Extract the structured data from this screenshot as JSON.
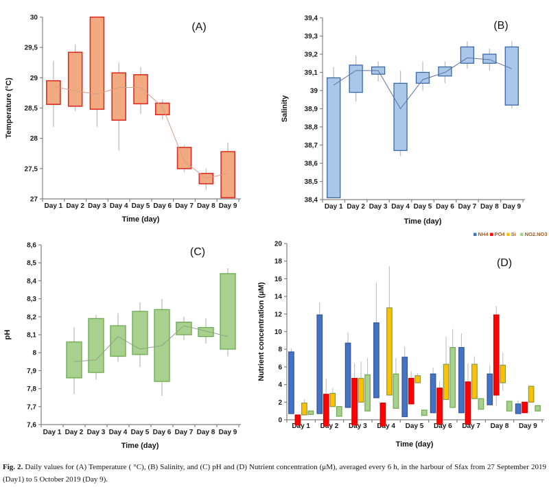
{
  "caption": {
    "label": "Fig. 2.",
    "text": "Daily values for (A) Temperature ( °C), (B) Salinity, and (C) pH and (D) Nutrient concentration (μM), averaged every 6 h, in the harbour of Sfax from 27 September 2019 (Day1) to 5 October 2019 (Day 9)."
  },
  "chart_data": [
    {
      "id": "A",
      "type": "box",
      "panel_label": "(A)",
      "ylabel": "Temperature (°C)",
      "xlabel": "Time (day)",
      "ylim": [
        27,
        30
      ],
      "ytick": 0.5,
      "decimal_comma": true,
      "categories": [
        "Day 1",
        "Day 2",
        "Day 3",
        "Day 4",
        "Day 5",
        "Day 6",
        "Day 7",
        "Day 8",
        "Day 9"
      ],
      "colors": {
        "fill": "#F2AB80",
        "stroke": "#DD2C23",
        "mean_line": "#D39E87",
        "whisker": "#BDBDBD",
        "axis": "#808080"
      },
      "boxes": [
        {
          "box": [
            28.56,
            28.95
          ],
          "whiskers": [
            28.19,
            29.28
          ],
          "mean": 28.86
        },
        {
          "box": [
            28.53,
            29.42
          ],
          "whiskers": [
            28.45,
            29.55
          ],
          "mean": 28.78
        },
        {
          "box": [
            28.48,
            30.0
          ],
          "whiskers": [
            28.19,
            30.0
          ],
          "mean": 28.73
        },
        {
          "box": [
            28.3,
            29.08
          ],
          "whiskers": [
            27.8,
            29.25
          ],
          "mean": 28.84
        },
        {
          "box": [
            28.57,
            29.05
          ],
          "whiskers": [
            28.4,
            29.18
          ],
          "mean": 28.84
        },
        {
          "box": [
            28.39,
            28.58
          ],
          "whiskers": [
            28.31,
            28.64
          ],
          "mean": 28.52
        },
        {
          "box": [
            27.5,
            27.85
          ],
          "whiskers": [
            27.44,
            27.89
          ],
          "mean": 27.62
        },
        {
          "box": [
            27.25,
            27.42
          ],
          "whiskers": [
            27.15,
            27.5
          ],
          "mean": 27.34
        },
        {
          "box": [
            27.02,
            27.78
          ],
          "whiskers": [
            27.02,
            27.93
          ],
          "mean": 27.42
        }
      ]
    },
    {
      "id": "B",
      "type": "box",
      "panel_label": "(B)",
      "ylabel": "Salinity",
      "xlabel": "Time (day)",
      "ylim": [
        38.4,
        39.4
      ],
      "ytick": 0.1,
      "decimal_comma": true,
      "categories": [
        "Day 1",
        "Day 2",
        "Day 3",
        "Day 4",
        "Day 5",
        "Day 6",
        "Day 7",
        "Day 8",
        "Day 9"
      ],
      "colors": {
        "fill": "#A9C7E9",
        "stroke": "#3A66A8",
        "mean_line": "#5B6FA8",
        "whisker": "#BDBDBD",
        "axis": "#808080"
      },
      "boxes": [
        {
          "box": [
            38.41,
            39.07
          ],
          "whiskers": [
            38.41,
            39.13
          ],
          "mean": 39.03
        },
        {
          "box": [
            38.99,
            39.14
          ],
          "whiskers": [
            38.94,
            39.19
          ],
          "mean": 39.11
        },
        {
          "box": [
            39.09,
            39.13
          ],
          "whiskers": [
            39.05,
            39.16
          ],
          "mean": 39.11
        },
        {
          "box": [
            38.67,
            39.04
          ],
          "whiskers": [
            38.64,
            39.11
          ],
          "mean": 38.9
        },
        {
          "box": [
            39.04,
            39.1
          ],
          "whiskers": [
            39.0,
            39.16
          ],
          "mean": 39.06
        },
        {
          "box": [
            39.08,
            39.13
          ],
          "whiskers": [
            39.04,
            39.16
          ],
          "mean": 39.1
        },
        {
          "box": [
            39.15,
            39.24
          ],
          "whiskers": [
            39.12,
            39.27
          ],
          "mean": 39.18
        },
        {
          "box": [
            39.15,
            39.2
          ],
          "whiskers": [
            39.11,
            39.23
          ],
          "mean": 39.17
        },
        {
          "box": [
            38.92,
            39.24
          ],
          "whiskers": [
            38.9,
            39.27
          ],
          "mean": 39.12
        }
      ]
    },
    {
      "id": "C",
      "type": "box",
      "panel_label": "(C)",
      "ylabel": "pH",
      "xlabel": "Time (day)",
      "ylim": [
        7.6,
        8.6
      ],
      "ytick": 0.1,
      "decimal_comma": true,
      "categories": [
        "Day 1",
        "Day 2",
        "Day 3",
        "Day 4",
        "Day 5",
        "Day 6",
        "Day 7",
        "Day 8",
        "Day 9"
      ],
      "colors": {
        "fill": "#A9D18E",
        "stroke": "#6AA84F",
        "mean_line": "#8E9F85",
        "whisker": "#BDBDBD",
        "axis": "#808080"
      },
      "boxes": [
        null,
        {
          "box": [
            7.86,
            8.06
          ],
          "whiskers": [
            7.77,
            8.14
          ],
          "mean": 7.95
        },
        {
          "box": [
            7.89,
            8.19
          ],
          "whiskers": [
            7.85,
            8.21
          ],
          "mean": 7.96
        },
        {
          "box": [
            7.98,
            8.15
          ],
          "whiskers": [
            7.95,
            8.22
          ],
          "mean": 8.09
        },
        {
          "box": [
            7.99,
            8.23
          ],
          "whiskers": [
            7.92,
            8.28
          ],
          "mean": 8.02
        },
        {
          "box": [
            7.84,
            8.24
          ],
          "whiskers": [
            7.76,
            8.3
          ],
          "mean": 8.04
        },
        {
          "box": [
            8.1,
            8.17
          ],
          "whiskers": [
            8.07,
            8.2
          ],
          "mean": 8.15
        },
        {
          "box": [
            8.09,
            8.14
          ],
          "whiskers": [
            8.05,
            8.19
          ],
          "mean": 8.12
        },
        {
          "box": [
            8.02,
            8.44
          ],
          "whiskers": [
            7.98,
            8.47
          ],
          "mean": 8.09
        }
      ]
    },
    {
      "id": "D",
      "type": "grouped-box",
      "panel_label": "(D)",
      "ylabel": "Nutrient concentration (μM)",
      "xlabel": "Time (day)",
      "ylim": [
        0,
        20
      ],
      "ytick": 2,
      "decimal_comma": false,
      "categories": [
        "Day 1",
        "Day 2",
        "Day 3",
        "Day 4",
        "Day 5",
        "Day 6",
        "Day 7",
        "Day 8",
        "Day 9"
      ],
      "colors": {
        "whisker": "#BFBFBF",
        "axis": "#808080",
        "legend_text": "#9A5B25"
      },
      "legend_position": "top-right",
      "series": [
        {
          "name": "NH4",
          "fill": "#4472C4",
          "stroke": "#2F5597",
          "values": [
            {
              "box": [
                0.7,
                7.7
              ],
              "whiskers": [
                0.7,
                8.1
              ]
            },
            {
              "box": [
                0.7,
                11.9
              ],
              "whiskers": [
                0.7,
                13.3
              ]
            },
            {
              "box": [
                1.4,
                8.7
              ],
              "whiskers": [
                1.4,
                9.9
              ]
            },
            {
              "box": [
                2.5,
                11.0
              ],
              "whiskers": [
                2.5,
                15.6
              ]
            },
            {
              "box": [
                0.35,
                7.1
              ],
              "whiskers": [
                0.35,
                8.3
              ]
            },
            {
              "box": [
                0.8,
                5.2
              ],
              "whiskers": [
                0.8,
                5.9
              ]
            },
            {
              "box": [
                0.8,
                8.2
              ],
              "whiskers": [
                0.8,
                9.8
              ]
            },
            {
              "box": [
                1.7,
                5.2
              ],
              "whiskers": [
                1.7,
                6.2
              ]
            },
            {
              "box": [
                0.7,
                1.8
              ],
              "whiskers": [
                0.7,
                2.2
              ]
            }
          ]
        },
        {
          "name": "PO4",
          "fill": "#FF0000",
          "stroke": "#D00000",
          "values": [
            {
              "box": [
                -0.6,
                0.55
              ],
              "whiskers": [
                -0.6,
                0.55
              ]
            },
            {
              "box": [
                -0.7,
                2.9
              ],
              "whiskers": [
                -0.7,
                4.7
              ]
            },
            {
              "box": [
                -0.6,
                4.7
              ],
              "whiskers": [
                -0.6,
                6.4
              ]
            },
            {
              "box": [
                -0.7,
                1.9
              ],
              "whiskers": [
                -0.7,
                1.9
              ]
            },
            {
              "box": [
                1.8,
                4.7
              ],
              "whiskers": [
                1.8,
                5.5
              ]
            },
            {
              "box": [
                -0.5,
                3.6
              ],
              "whiskers": [
                -0.5,
                4.4
              ]
            },
            {
              "box": [
                -0.5,
                4.3
              ],
              "whiskers": [
                -0.5,
                6.4
              ]
            },
            {
              "box": [
                2.8,
                11.9
              ],
              "whiskers": [
                1.6,
                12.9
              ]
            },
            {
              "box": [
                0.8,
                2.0
              ],
              "whiskers": [
                0.8,
                2.0
              ]
            }
          ]
        },
        {
          "name": "Si",
          "fill": "#FFC000",
          "stroke": "#839B49",
          "values": [
            {
              "box": [
                0.55,
                1.9
              ],
              "whiskers": [
                0.55,
                2.3
              ]
            },
            {
              "box": [
                1.5,
                3.0
              ],
              "whiskers": [
                1.5,
                3.6
              ]
            },
            {
              "box": [
                2.0,
                4.7
              ],
              "whiskers": [
                2.0,
                6.6
              ]
            },
            {
              "box": [
                2.8,
                12.7
              ],
              "whiskers": [
                2.8,
                17.4
              ]
            },
            {
              "box": [
                4.2,
                5.0
              ],
              "whiskers": [
                4.2,
                5.3
              ]
            },
            {
              "box": [
                2.3,
                6.3
              ],
              "whiskers": [
                2.3,
                9.4
              ]
            },
            {
              "box": [
                2.4,
                6.3
              ],
              "whiskers": [
                2.4,
                7.2
              ]
            },
            {
              "box": [
                4.2,
                6.2
              ],
              "whiskers": [
                3.3,
                7.6
              ]
            },
            {
              "box": [
                2.0,
                3.8
              ],
              "whiskers": [
                2.0,
                3.8
              ]
            }
          ]
        },
        {
          "name": "NO2.NO3",
          "fill": "#A9D18E",
          "stroke": "#6AA84F",
          "values": [
            {
              "box": [
                0.6,
                1.0
              ],
              "whiskers": [
                0.6,
                1.0
              ]
            },
            {
              "box": [
                0.4,
                1.5
              ],
              "whiskers": [
                0.4,
                1.5
              ]
            },
            {
              "box": [
                1.0,
                5.1
              ],
              "whiskers": [
                1.0,
                7.0
              ]
            },
            {
              "box": [
                1.3,
                5.2
              ],
              "whiskers": [
                1.3,
                7.0
              ]
            },
            {
              "box": [
                0.5,
                1.1
              ],
              "whiskers": [
                0.5,
                1.1
              ]
            },
            {
              "box": [
                1.4,
                8.2
              ],
              "whiskers": [
                1.4,
                10.3
              ]
            },
            {
              "box": [
                1.2,
                2.4
              ],
              "whiskers": [
                1.2,
                2.4
              ]
            },
            {
              "box": [
                1.0,
                2.1
              ],
              "whiskers": [
                1.0,
                2.1
              ]
            },
            {
              "box": [
                1.0,
                1.6
              ],
              "whiskers": [
                1.0,
                1.6
              ]
            }
          ]
        }
      ]
    }
  ]
}
